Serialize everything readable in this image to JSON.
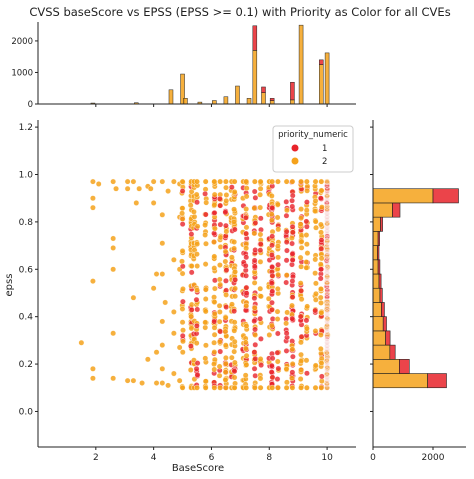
{
  "chart_data": {
    "type": "scatter",
    "title": "CVSS baseScore vs EPSS (EPSS >= 0.1) with Priority as Color for all CVEs",
    "xlabel": "BaseScore",
    "ylabel": "epss",
    "xlim": [
      0,
      11
    ],
    "ylim": [
      -0.15,
      1.23
    ],
    "xticks": [
      "2",
      "4",
      "6",
      "8",
      "10"
    ],
    "yticks": [
      "0.0",
      "0.2",
      "0.4",
      "0.6",
      "0.8",
      "1.0",
      "1.2"
    ],
    "legend": {
      "title": "priority_numeric",
      "placement": "top-right",
      "entries": [
        "1",
        "2"
      ]
    },
    "colors": {
      "priority_1": "#e8232a",
      "priority_2": "#f5a21b"
    },
    "top_marginal": {
      "type": "histogram",
      "ylim": [
        0,
        2600
      ],
      "yticks": [
        "0",
        "1000",
        "2000"
      ],
      "bins": [
        {
          "x": 1.9,
          "p2": 30,
          "p1": 0
        },
        {
          "x": 3.4,
          "p2": 40,
          "p1": 0
        },
        {
          "x": 4.6,
          "p2": 450,
          "p1": 0
        },
        {
          "x": 5.0,
          "p2": 950,
          "p1": 0
        },
        {
          "x": 5.1,
          "p2": 180,
          "p1": 0
        },
        {
          "x": 5.6,
          "p2": 60,
          "p1": 0
        },
        {
          "x": 6.1,
          "p2": 110,
          "p1": 0
        },
        {
          "x": 6.5,
          "p2": 230,
          "p1": 0
        },
        {
          "x": 6.9,
          "p2": 570,
          "p1": 0
        },
        {
          "x": 7.5,
          "p2": 1700,
          "p1": 780
        },
        {
          "x": 7.3,
          "p2": 180,
          "p1": 0
        },
        {
          "x": 7.8,
          "p2": 360,
          "p1": 180
        },
        {
          "x": 8.1,
          "p2": 110,
          "p1": 70
        },
        {
          "x": 8.8,
          "p2": 130,
          "p1": 560
        },
        {
          "x": 9.1,
          "p2": 2500,
          "p1": 0
        },
        {
          "x": 9.8,
          "p2": 1250,
          "p1": 150
        },
        {
          "x": 10.0,
          "p2": 1620,
          "p1": 0
        }
      ]
    },
    "right_marginal": {
      "type": "histogram",
      "xlim": [
        0,
        3100
      ],
      "xticks": [
        "0",
        "2000"
      ],
      "bins": [
        {
          "y": 0.13,
          "p2": 1820,
          "p1": 630
        },
        {
          "y": 0.19,
          "p2": 880,
          "p1": 330
        },
        {
          "y": 0.25,
          "p2": 560,
          "p1": 180
        },
        {
          "y": 0.31,
          "p2": 420,
          "p1": 150
        },
        {
          "y": 0.37,
          "p2": 340,
          "p1": 110
        },
        {
          "y": 0.43,
          "p2": 280,
          "p1": 100
        },
        {
          "y": 0.49,
          "p2": 230,
          "p1": 80
        },
        {
          "y": 0.55,
          "p2": 200,
          "p1": 70
        },
        {
          "y": 0.61,
          "p2": 170,
          "p1": 60
        },
        {
          "y": 0.67,
          "p2": 150,
          "p1": 50
        },
        {
          "y": 0.73,
          "p2": 170,
          "p1": 50
        },
        {
          "y": 0.79,
          "p2": 250,
          "p1": 70
        },
        {
          "y": 0.85,
          "p2": 650,
          "p1": 250
        },
        {
          "y": 0.91,
          "p2": 2000,
          "p1": 850
        }
      ]
    },
    "points": [
      [
        1.5,
        0.29,
        2
      ],
      [
        1.9,
        0.18,
        2
      ],
      [
        1.9,
        0.14,
        2
      ],
      [
        1.9,
        0.9,
        2
      ],
      [
        1.9,
        0.86,
        2
      ],
      [
        1.9,
        0.97,
        2
      ],
      [
        1.9,
        0.55,
        2
      ],
      [
        2.1,
        0.96,
        2
      ],
      [
        2.6,
        0.97,
        2
      ],
      [
        2.6,
        0.73,
        2
      ],
      [
        2.6,
        0.69,
        2
      ],
      [
        2.6,
        0.14,
        2
      ],
      [
        2.6,
        0.33,
        2
      ],
      [
        2.6,
        0.6,
        2
      ],
      [
        2.7,
        0.94,
        2
      ],
      [
        3.1,
        0.97,
        2
      ],
      [
        3.1,
        0.94,
        2
      ],
      [
        3.1,
        0.13,
        2
      ],
      [
        3.3,
        0.97,
        2
      ],
      [
        3.3,
        0.13,
        2
      ],
      [
        3.3,
        0.48,
        2
      ],
      [
        3.4,
        0.88,
        2
      ],
      [
        3.5,
        0.94,
        2
      ],
      [
        3.8,
        0.95,
        2
      ],
      [
        3.6,
        0.12,
        2
      ],
      [
        3.8,
        0.22,
        2
      ],
      [
        3.9,
        0.94,
        2
      ],
      [
        4.0,
        0.97,
        2
      ],
      [
        4.0,
        0.52,
        2
      ],
      [
        4.0,
        0.88,
        2
      ],
      [
        4.1,
        0.12,
        2
      ],
      [
        4.1,
        0.25,
        2
      ],
      [
        4.1,
        0.58,
        2
      ],
      [
        4.3,
        0.97,
        2
      ],
      [
        4.3,
        0.83,
        2
      ],
      [
        4.3,
        0.71,
        2
      ],
      [
        4.3,
        0.58,
        2
      ],
      [
        4.3,
        0.38,
        2
      ],
      [
        4.3,
        0.28,
        2
      ],
      [
        4.3,
        0.18,
        2
      ],
      [
        4.3,
        0.12,
        2
      ],
      [
        4.4,
        0.46,
        2
      ],
      [
        4.5,
        0.93,
        2
      ],
      [
        4.5,
        0.11,
        2
      ],
      [
        4.7,
        0.97,
        2
      ],
      [
        4.7,
        0.64,
        2
      ],
      [
        4.7,
        0.42,
        2
      ],
      [
        4.7,
        0.33,
        2
      ],
      [
        4.7,
        0.16,
        2
      ],
      [
        4.9,
        0.96,
        2
      ],
      [
        4.9,
        0.82,
        2
      ],
      [
        4.9,
        0.6,
        2
      ],
      [
        4.9,
        0.27,
        2
      ],
      [
        4.9,
        0.13,
        2
      ]
    ],
    "columns": [
      {
        "x": 5.0,
        "p1": 0.25,
        "dense": false
      },
      {
        "x": 5.3,
        "p1": 0.2,
        "dense": true
      },
      {
        "x": 5.4,
        "p1": 0.15,
        "dense": false
      },
      {
        "x": 5.5,
        "p1": 0.3,
        "dense": false
      },
      {
        "x": 5.8,
        "p1": 0.2,
        "dense": false
      },
      {
        "x": 6.1,
        "p1": 0.35,
        "dense": true
      },
      {
        "x": 6.3,
        "p1": 0.3,
        "dense": false
      },
      {
        "x": 6.5,
        "p1": 0.3,
        "dense": true
      },
      {
        "x": 6.7,
        "p1": 0.25,
        "dense": false
      },
      {
        "x": 6.8,
        "p1": 0.3,
        "dense": true
      },
      {
        "x": 7.1,
        "p1": 0.4,
        "dense": false
      },
      {
        "x": 7.2,
        "p1": 0.45,
        "dense": true
      },
      {
        "x": 7.5,
        "p1": 0.55,
        "dense": true
      },
      {
        "x": 7.7,
        "p1": 0.3,
        "dense": false
      },
      {
        "x": 8.0,
        "p1": 0.35,
        "dense": false
      },
      {
        "x": 8.1,
        "p1": 0.6,
        "dense": true
      },
      {
        "x": 8.3,
        "p1": 0.4,
        "dense": false
      },
      {
        "x": 8.6,
        "p1": 0.5,
        "dense": false
      },
      {
        "x": 8.8,
        "p1": 0.85,
        "dense": true
      },
      {
        "x": 9.1,
        "p1": 0.35,
        "dense": true
      },
      {
        "x": 9.3,
        "p1": 0.4,
        "dense": false
      },
      {
        "x": 9.6,
        "p1": 0.3,
        "dense": false
      },
      {
        "x": 9.8,
        "p1": 0.45,
        "dense": true
      },
      {
        "x": 10.0,
        "p1": 0.3,
        "dense": true
      }
    ]
  }
}
